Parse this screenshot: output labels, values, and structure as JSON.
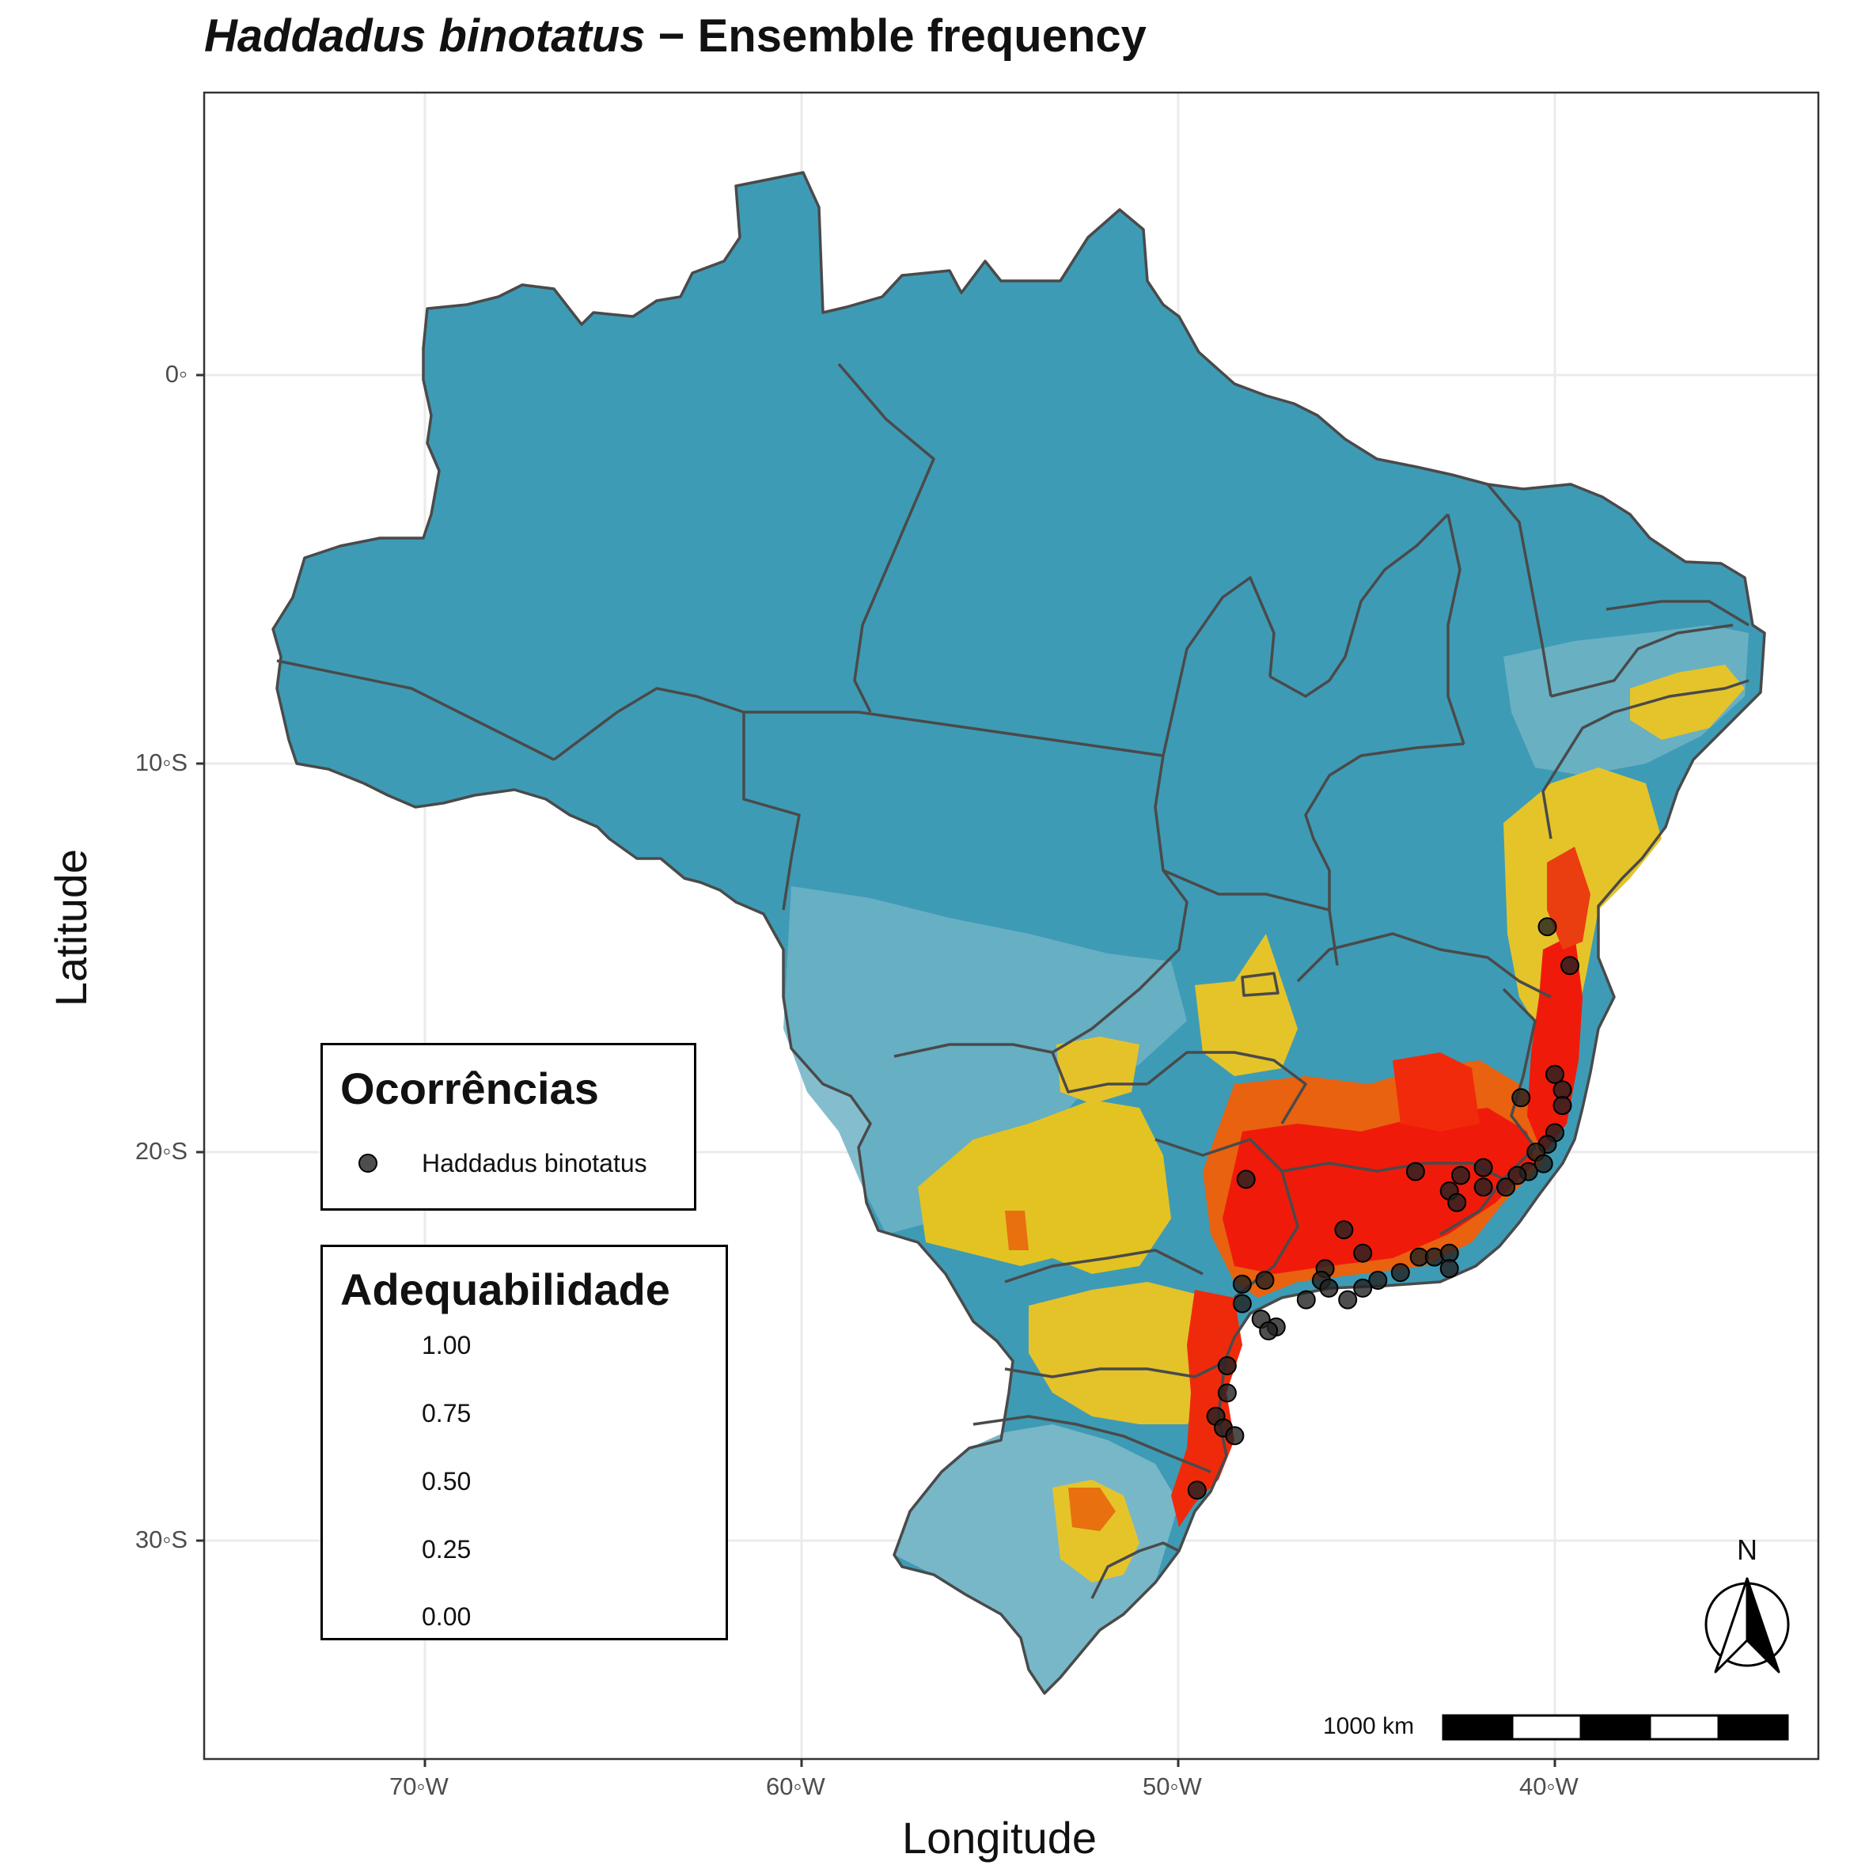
{
  "title": {
    "species": "Haddadus binotatus",
    "separator": " − ",
    "subtitle": "Ensemble frequency"
  },
  "axes": {
    "x_title": "Longitude",
    "y_title": "Latitude",
    "x_ticks": [
      {
        "value": -70,
        "label": "70◦W"
      },
      {
        "value": -60,
        "label": "60◦W"
      },
      {
        "value": -50,
        "label": "50◦W"
      },
      {
        "value": -40,
        "label": "40◦W"
      }
    ],
    "y_ticks": [
      {
        "value": 0,
        "label": "0◦"
      },
      {
        "value": -10,
        "label": "10◦S"
      },
      {
        "value": -20,
        "label": "20◦S"
      },
      {
        "value": -30,
        "label": "30◦S"
      }
    ],
    "xlim": [
      -75.8,
      -33.2
    ],
    "ylim": [
      -35.5,
      7.2
    ]
  },
  "legend_points": {
    "title": "Ocorrências",
    "item": "Haddadus binotatus"
  },
  "legend_suitability": {
    "title": "Adequabilidade",
    "labels": [
      "1.00",
      "0.75",
      "0.50",
      "0.25",
      "0.00"
    ],
    "colors": [
      "#3a9ab5",
      "#78b7c7",
      "#b9c98a",
      "#e5c82a",
      "#e3a415",
      "#e85a12",
      "#f01a0a"
    ]
  },
  "scale_bar": {
    "label": "1000 km"
  },
  "north_arrow": {
    "label": "N"
  },
  "colors": {
    "ocean_base": "#3e9bb5",
    "border": "#4a4a4a",
    "grid": "#ebebeb",
    "point": "#222222"
  },
  "chart_data": {
    "type": "scatter",
    "title": "Haddadus binotatus − Ensemble frequency",
    "xlabel": "Longitude",
    "ylabel": "Latitude",
    "series": [
      {
        "name": "Haddadus binotatus",
        "points": [
          [
            -40.2,
            -14.2
          ],
          [
            -39.6,
            -15.2
          ],
          [
            -40.0,
            -18.0
          ],
          [
            -39.8,
            -18.4
          ],
          [
            -39.8,
            -18.8
          ],
          [
            -40.9,
            -18.6
          ],
          [
            -40.0,
            -19.5
          ],
          [
            -40.2,
            -19.8
          ],
          [
            -40.5,
            -20.0
          ],
          [
            -40.3,
            -20.3
          ],
          [
            -40.7,
            -20.5
          ],
          [
            -41.0,
            -20.6
          ],
          [
            -41.3,
            -20.9
          ],
          [
            -41.9,
            -20.4
          ],
          [
            -42.5,
            -20.6
          ],
          [
            -41.9,
            -20.9
          ],
          [
            -42.8,
            -21.0
          ],
          [
            -42.6,
            -21.3
          ],
          [
            -43.7,
            -20.5
          ],
          [
            -48.2,
            -20.7
          ],
          [
            -45.6,
            -22.0
          ],
          [
            -45.1,
            -22.6
          ],
          [
            -43.6,
            -22.7
          ],
          [
            -43.2,
            -22.7
          ],
          [
            -42.8,
            -22.6
          ],
          [
            -42.8,
            -23.0
          ],
          [
            -44.1,
            -23.1
          ],
          [
            -44.7,
            -23.3
          ],
          [
            -45.1,
            -23.5
          ],
          [
            -45.5,
            -23.8
          ],
          [
            -46.1,
            -23.0
          ],
          [
            -46.2,
            -23.3
          ],
          [
            -46.0,
            -23.5
          ],
          [
            -46.6,
            -23.8
          ],
          [
            -47.7,
            -23.3
          ],
          [
            -48.3,
            -23.4
          ],
          [
            -48.3,
            -23.9
          ],
          [
            -47.8,
            -24.3
          ],
          [
            -47.4,
            -24.5
          ],
          [
            -47.6,
            -24.6
          ],
          [
            -48.7,
            -25.5
          ],
          [
            -48.7,
            -26.2
          ],
          [
            -49.0,
            -26.8
          ],
          [
            -48.8,
            -27.1
          ],
          [
            -48.5,
            -27.3
          ],
          [
            -49.5,
            -28.7
          ]
        ]
      }
    ],
    "suitability_range": [
      0,
      1
    ]
  }
}
